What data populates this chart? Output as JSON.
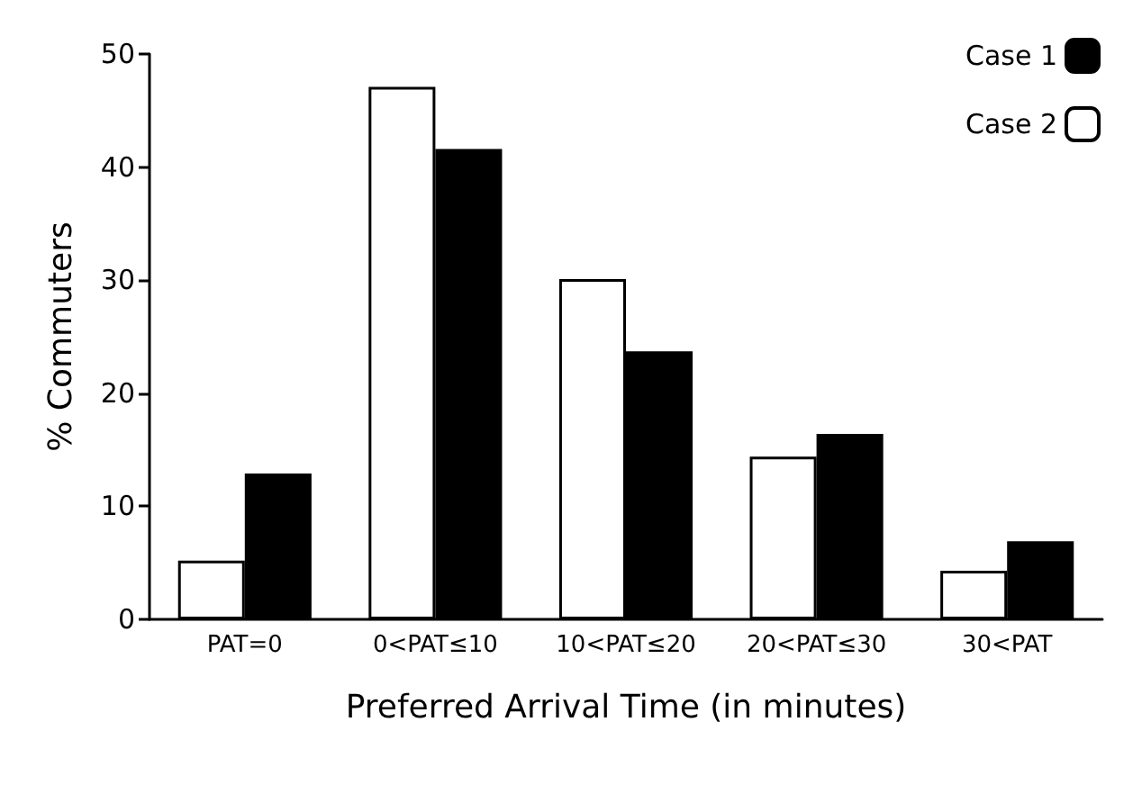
{
  "chart_data": {
    "type": "bar",
    "xlabel": "Preferred Arrival Time (in minutes)",
    "ylabel": "% Commuters",
    "categories": [
      "PAT=0",
      "0<PAT≤10",
      "10<PAT≤20",
      "20<PAT≤30",
      "30<PAT"
    ],
    "series": [
      {
        "name": "Case 2",
        "color": "#ffffff",
        "values": [
          5.2,
          47.1,
          30.1,
          14.4,
          4.3
        ]
      },
      {
        "name": "Case 1",
        "color": "#000000",
        "values": [
          12.9,
          41.6,
          23.7,
          16.4,
          6.9
        ]
      }
    ],
    "ylim": [
      0,
      50
    ],
    "yticks": [
      0,
      10,
      20,
      30,
      40,
      50
    ],
    "grid": false,
    "legend": "top right"
  }
}
